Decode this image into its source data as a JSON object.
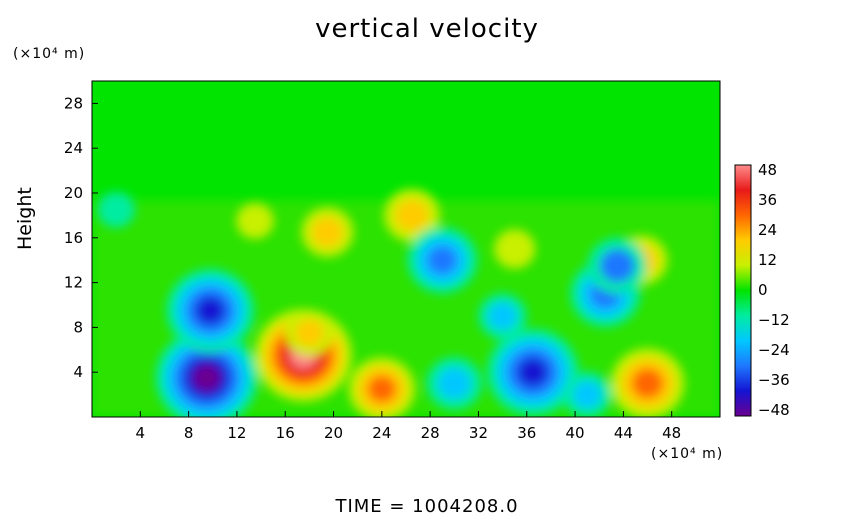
{
  "chart_data": {
    "type": "heatmap",
    "title": "vertical velocity",
    "ylabel": "Height",
    "x_unit": "(×10⁴ m)",
    "y_unit": "(×10⁴ m)",
    "xlim": [
      0,
      52
    ],
    "ylim": [
      0,
      30
    ],
    "x_ticks": [
      "4",
      "8",
      "12",
      "16",
      "20",
      "24",
      "28",
      "32",
      "36",
      "40",
      "44",
      "48"
    ],
    "y_ticks": [
      "4",
      "8",
      "12",
      "16",
      "20",
      "24",
      "28"
    ],
    "colorbar": {
      "min": -48,
      "max": 48,
      "ticks": [
        "48",
        "36",
        "24",
        "12",
        "0",
        "−12",
        "−24",
        "−36",
        "−48"
      ],
      "colors": [
        "#ff8c8c",
        "#e81a1a",
        "#ff6600",
        "#ffcc00",
        "#c8f000",
        "#00e400",
        "#00eca0",
        "#00c8ff",
        "#1e78ff",
        "#1414d2",
        "#6a0090"
      ]
    },
    "features": [
      {
        "x": 9.5,
        "y": 3.5,
        "value": -48
      },
      {
        "x": 17.5,
        "y": 5.5,
        "value": 45
      },
      {
        "x": 36.5,
        "y": 4.0,
        "value": -42
      },
      {
        "x": 46.0,
        "y": 3.0,
        "value": 32
      },
      {
        "x": 24.0,
        "y": 2.5,
        "value": 28
      },
      {
        "x": 30.0,
        "y": 3.0,
        "value": -22
      },
      {
        "x": 41.0,
        "y": 2.0,
        "value": -18
      },
      {
        "x": 18.0,
        "y": 7.5,
        "value": 18
      },
      {
        "x": 26.5,
        "y": 18.0,
        "value": 22
      },
      {
        "x": 19.5,
        "y": 16.5,
        "value": 20
      },
      {
        "x": 35.0,
        "y": 15.0,
        "value": 14
      },
      {
        "x": 45.5,
        "y": 14.0,
        "value": 20
      },
      {
        "x": 9.8,
        "y": 9.5,
        "value": -40
      },
      {
        "x": 29.0,
        "y": 14.0,
        "value": -30
      },
      {
        "x": 42.5,
        "y": 11.0,
        "value": -30
      },
      {
        "x": 43.5,
        "y": 13.5,
        "value": -24
      },
      {
        "x": 34.0,
        "y": 9.0,
        "value": -18
      },
      {
        "x": 13.5,
        "y": 17.5,
        "value": 12
      },
      {
        "x": 2.0,
        "y": 18.5,
        "value": -12
      }
    ]
  },
  "footer": {
    "label": "TIME  =  1004208.0"
  }
}
